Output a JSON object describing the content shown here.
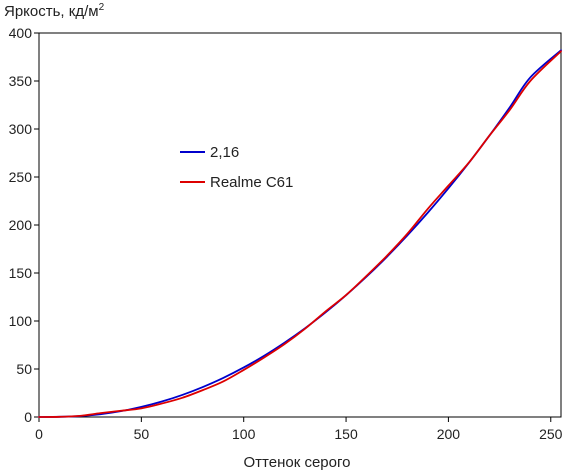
{
  "chart_data": {
    "type": "line",
    "title": "",
    "ylabel": "Яркость, кд/м",
    "ylabel_superscript": "2",
    "xlabel": "Оттенок серого",
    "xlim": [
      0,
      255
    ],
    "ylim": [
      0,
      400
    ],
    "xticks": [
      0,
      50,
      100,
      150,
      200,
      250
    ],
    "yticks": [
      0,
      50,
      100,
      150,
      200,
      250,
      300,
      350,
      400
    ],
    "grid": false,
    "legend_position": "center-left",
    "series": [
      {
        "name": "2,16",
        "color": "#0000cc",
        "x": [
          0,
          10,
          20,
          30,
          40,
          50,
          60,
          70,
          80,
          90,
          100,
          110,
          120,
          130,
          140,
          150,
          160,
          170,
          180,
          190,
          200,
          210,
          220,
          230,
          240,
          255
        ],
        "y": [
          0,
          0.2,
          1.0,
          2.9,
          6.1,
          10.5,
          16.1,
          23.0,
          31.2,
          40.7,
          51.6,
          63.8,
          77.5,
          92.5,
          109.0,
          126.9,
          146.2,
          167.0,
          189.3,
          213.0,
          238.2,
          264.8,
          293.0,
          322.6,
          353.7,
          382.0
        ]
      },
      {
        "name": "Realme C61",
        "color": "#dd0000",
        "x": [
          0,
          10,
          20,
          30,
          40,
          50,
          60,
          70,
          80,
          90,
          100,
          110,
          120,
          130,
          140,
          150,
          160,
          170,
          180,
          190,
          200,
          210,
          220,
          230,
          240,
          255
        ],
        "y": [
          0,
          0.2,
          1.2,
          4.0,
          6.5,
          9.0,
          14.0,
          20.0,
          28.0,
          37.0,
          49.0,
          62.0,
          76.0,
          92.0,
          110.0,
          127.0,
          147.0,
          168.0,
          191.0,
          217.0,
          241.0,
          265.0,
          293.0,
          320.0,
          350.0,
          381.0
        ]
      }
    ]
  }
}
